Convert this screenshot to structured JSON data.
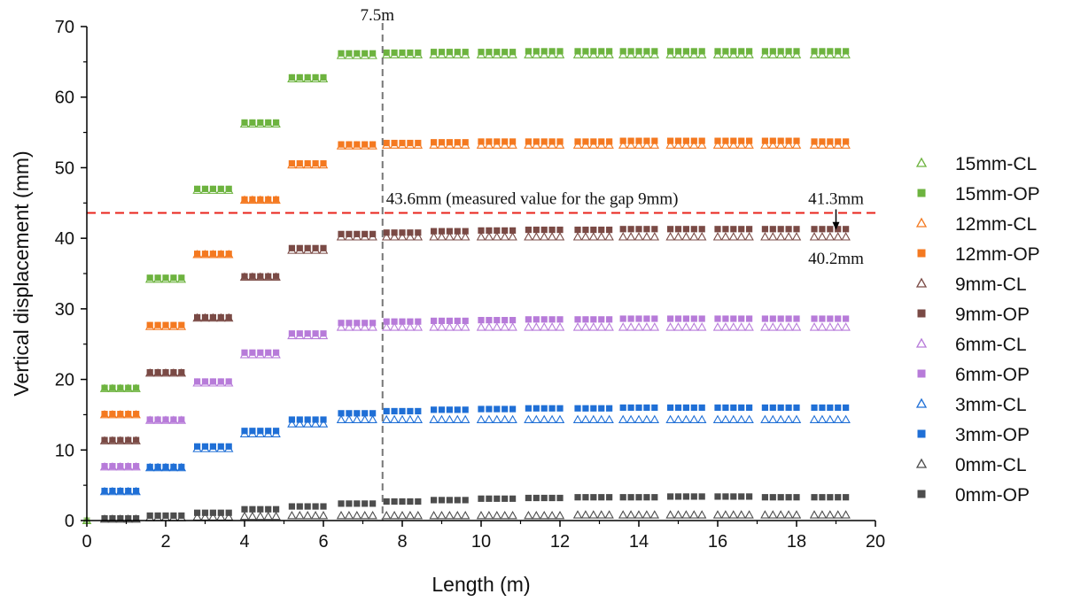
{
  "chart_data": {
    "type": "scatter",
    "xlabel": "Length (m)",
    "ylabel": "Vertical displacement (mm)",
    "xlim": [
      0,
      20
    ],
    "ylim": [
      0,
      70
    ],
    "x_ticks": [
      "0",
      "2",
      "4",
      "6",
      "8",
      "10",
      "12",
      "14",
      "16",
      "18",
      "20"
    ],
    "y_ticks": [
      "0",
      "10",
      "20",
      "30",
      "40",
      "50",
      "60",
      "70"
    ],
    "grid": false,
    "legend_position": "right",
    "annotations": {
      "vline_x": 7.5,
      "vline_label": "7.5m",
      "hline_y": 43.6,
      "hline_label": "43.6mm (measured value for the gap 9mm)",
      "hline_color": "#e8231b",
      "point_top_label": "41.3mm",
      "point_bottom_label": "40.2mm",
      "arrow_x": 19.0
    },
    "group_centers": [
      0.85,
      2.0,
      3.2,
      4.4,
      5.6,
      6.85,
      8.0,
      9.2,
      10.4,
      11.6,
      12.85,
      14.0,
      15.2,
      16.4,
      17.6,
      18.85
    ],
    "series": [
      {
        "name": "15mm-CL",
        "marker": "triangle-open",
        "color": "#6db33f",
        "values": [
          18.7,
          34.2,
          46.8,
          56.2,
          62.6,
          65.9,
          66.0,
          66.0,
          66.0,
          66.0,
          66.0,
          66.0,
          66.0,
          66.0,
          66.0,
          66.0
        ]
      },
      {
        "name": "15mm-OP",
        "marker": "square-filled",
        "color": "#6db33f",
        "values": [
          18.8,
          34.4,
          47.0,
          56.4,
          62.8,
          66.2,
          66.3,
          66.4,
          66.4,
          66.5,
          66.5,
          66.5,
          66.5,
          66.5,
          66.5,
          66.5
        ]
      },
      {
        "name": "12mm-CL",
        "marker": "triangle-open",
        "color": "#f47920",
        "values": [
          15.0,
          27.5,
          37.7,
          45.4,
          50.4,
          53.1,
          53.2,
          53.2,
          53.2,
          53.2,
          53.2,
          53.2,
          53.2,
          53.2,
          53.2,
          53.2
        ]
      },
      {
        "name": "12mm-OP",
        "marker": "square-filled",
        "color": "#f47920",
        "values": [
          15.1,
          27.7,
          37.8,
          45.5,
          50.6,
          53.3,
          53.5,
          53.6,
          53.7,
          53.7,
          53.7,
          53.8,
          53.8,
          53.8,
          53.8,
          53.7
        ]
      },
      {
        "name": "9mm-CL",
        "marker": "triangle-open",
        "color": "#7a4a45",
        "values": [
          11.3,
          20.9,
          28.7,
          34.5,
          38.3,
          40.2,
          40.2,
          40.2,
          40.2,
          40.2,
          40.2,
          40.2,
          40.2,
          40.2,
          40.2,
          40.2
        ]
      },
      {
        "name": "9mm-OP",
        "marker": "square-filled",
        "color": "#7a4a45",
        "values": [
          11.4,
          21.0,
          28.8,
          34.6,
          38.6,
          40.6,
          40.8,
          41.0,
          41.1,
          41.2,
          41.2,
          41.3,
          41.3,
          41.3,
          41.3,
          41.3
        ]
      },
      {
        "name": "6mm-CL",
        "marker": "triangle-open",
        "color": "#b77bd9",
        "values": [
          7.6,
          14.2,
          19.5,
          23.5,
          26.2,
          27.4,
          27.4,
          27.4,
          27.4,
          27.4,
          27.4,
          27.4,
          27.4,
          27.4,
          27.4,
          27.4
        ]
      },
      {
        "name": "6mm-OP",
        "marker": "square-filled",
        "color": "#b77bd9",
        "values": [
          7.7,
          14.3,
          19.7,
          23.8,
          26.5,
          28.0,
          28.2,
          28.3,
          28.4,
          28.5,
          28.5,
          28.6,
          28.6,
          28.6,
          28.6,
          28.6
        ]
      },
      {
        "name": "3mm-CL",
        "marker": "triangle-open",
        "color": "#1f6fd6",
        "values": [
          4.1,
          7.5,
          10.2,
          12.3,
          13.7,
          14.3,
          14.3,
          14.3,
          14.3,
          14.3,
          14.3,
          14.3,
          14.3,
          14.3,
          14.3,
          14.3
        ]
      },
      {
        "name": "3mm-OP",
        "marker": "square-filled",
        "color": "#1f6fd6",
        "values": [
          4.2,
          7.6,
          10.5,
          12.7,
          14.3,
          15.2,
          15.5,
          15.7,
          15.8,
          15.9,
          15.9,
          16.0,
          16.0,
          16.0,
          16.0,
          16.0
        ]
      },
      {
        "name": "0mm-CL",
        "marker": "triangle-open",
        "color": "#4d4d4d",
        "values": [
          0.2,
          0.4,
          0.5,
          0.6,
          0.7,
          0.7,
          0.7,
          0.7,
          0.7,
          0.7,
          0.8,
          0.8,
          0.8,
          0.8,
          0.8,
          0.8
        ]
      },
      {
        "name": "0mm-OP",
        "marker": "square-filled",
        "color": "#4d4d4d",
        "values": [
          0.3,
          0.7,
          1.1,
          1.6,
          2.0,
          2.4,
          2.7,
          2.9,
          3.1,
          3.2,
          3.3,
          3.3,
          3.4,
          3.4,
          3.3,
          3.3
        ]
      }
    ]
  }
}
